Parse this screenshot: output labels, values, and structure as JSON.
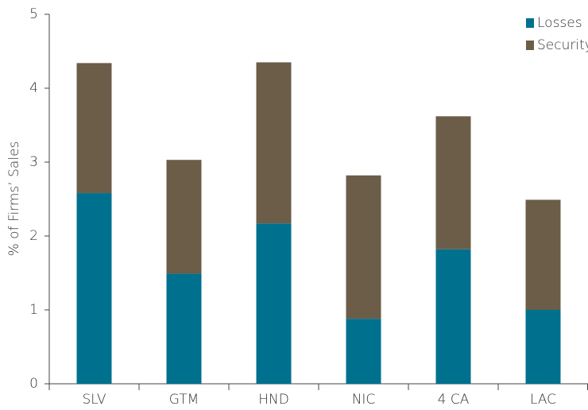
{
  "chart_data": {
    "type": "stacked_bar",
    "y_label": "% of Firms’ Sales",
    "categories": [
      "SLV",
      "GTM",
      "HND",
      "NIC",
      "4 CA",
      "LAC"
    ],
    "series": [
      {
        "name": "Losses",
        "color": "#00708f",
        "values": [
          2.58,
          1.49,
          2.17,
          0.88,
          1.82,
          1.0
        ]
      },
      {
        "name": "Security",
        "color": "#6b5d48",
        "values": [
          1.76,
          1.54,
          2.18,
          1.94,
          1.8,
          1.49
        ]
      }
    ],
    "ylim": [
      0,
      5
    ],
    "yticks": [
      0,
      1,
      2,
      3,
      4,
      5
    ],
    "legend": "upper right"
  }
}
